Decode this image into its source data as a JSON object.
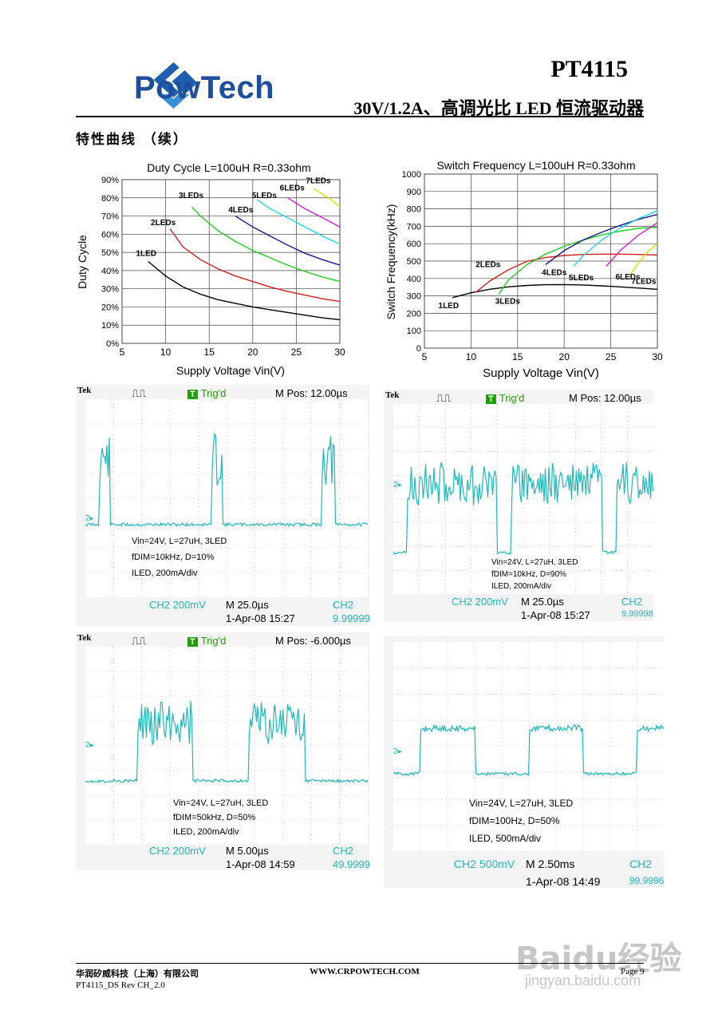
{
  "header": {
    "logo_text": "PowTech",
    "part_number": "PT4115",
    "title": "30V/1.2A、高调光比 LED 恒流驱动器"
  },
  "section_heading": "特性曲线 （续）",
  "charts": {
    "duty": {
      "title": "Duty Cycle L=100uH R=0.33ohm",
      "xlabel": "Supply Voltage Vin(V)",
      "ylabel": "Duty Cycle",
      "xticks": [
        "5",
        "10",
        "15",
        "20",
        "25",
        "30"
      ],
      "yticks": [
        "0%",
        "10%",
        "20%",
        "30%",
        "40%",
        "50%",
        "60%",
        "70%",
        "80%",
        "90%"
      ]
    },
    "freq": {
      "title": "Switch Frequency L=100uH R=0.33ohm",
      "xlabel": "Supply Voltage Vin(V)",
      "ylabel": "Switch Frequency(kHz)",
      "xticks": [
        "5",
        "10",
        "15",
        "20",
        "25",
        "30"
      ],
      "yticks": [
        "0",
        "100",
        "200",
        "300",
        "400",
        "500",
        "600",
        "700",
        "800",
        "900",
        "1000"
      ]
    }
  },
  "chart_data": [
    {
      "type": "line",
      "title": "Duty Cycle L=100uH R=0.33ohm",
      "xlabel": "Supply Voltage Vin(V)",
      "ylabel": "Duty Cycle",
      "xlim": [
        5,
        30
      ],
      "ylim": [
        0,
        90
      ],
      "grid": true,
      "series": [
        {
          "name": "1LED",
          "color": "#000000",
          "x": [
            8,
            10,
            12,
            14,
            16,
            18,
            20,
            22,
            24,
            26,
            28,
            30
          ],
          "y": [
            45,
            37,
            31,
            27,
            24,
            22,
            20,
            18.5,
            17,
            15.5,
            14,
            13
          ]
        },
        {
          "name": "2LEDs",
          "color": "#d02020",
          "x": [
            10.5,
            12,
            14,
            16,
            18,
            20,
            22,
            24,
            26,
            28,
            30
          ],
          "y": [
            63,
            53,
            46,
            41,
            37,
            34,
            31,
            28.5,
            26.5,
            24.5,
            23
          ]
        },
        {
          "name": "3LEDs",
          "color": "#22cc22",
          "x": [
            13,
            14,
            16,
            18,
            20,
            22,
            24,
            26,
            28,
            30
          ],
          "y": [
            75,
            70,
            62,
            56,
            51,
            47,
            43,
            39.5,
            36.5,
            34
          ]
        },
        {
          "name": "4LEDs",
          "color": "#1a1a8c",
          "x": [
            18,
            20,
            22,
            24,
            26,
            28,
            30
          ],
          "y": [
            70,
            64,
            59,
            54,
            49.5,
            46,
            43
          ]
        },
        {
          "name": "5LEDs",
          "color": "#22d6e0",
          "x": [
            20.5,
            22,
            24,
            26,
            28,
            30
          ],
          "y": [
            79,
            74,
            69,
            64,
            59,
            54.5
          ]
        },
        {
          "name": "6LEDs",
          "color": "#d020d0",
          "x": [
            24,
            26,
            28,
            30
          ],
          "y": [
            80,
            74,
            69,
            64
          ]
        },
        {
          "name": "7LEDs",
          "color": "#e0e000",
          "x": [
            27,
            28,
            29,
            30
          ],
          "y": [
            85,
            82,
            79,
            75
          ]
        }
      ]
    },
    {
      "type": "line",
      "title": "Switch Frequency L=100uH R=0.33ohm",
      "xlabel": "Supply Voltage Vin(V)",
      "ylabel": "Switch Frequency(kHz)",
      "xlim": [
        5,
        30
      ],
      "ylim": [
        0,
        1000
      ],
      "grid": true,
      "series": [
        {
          "name": "1LED",
          "color": "#000000",
          "x": [
            8,
            10,
            12,
            14,
            16,
            18,
            20,
            22,
            24,
            26,
            28,
            30
          ],
          "y": [
            290,
            318,
            338,
            352,
            360,
            364,
            365,
            363,
            358,
            352,
            345,
            338
          ]
        },
        {
          "name": "2LEDs",
          "color": "#d02020",
          "x": [
            10.5,
            12,
            14,
            16,
            18,
            20,
            22,
            24,
            26,
            28,
            30
          ],
          "y": [
            320,
            385,
            450,
            498,
            520,
            532,
            538,
            540,
            540,
            538,
            535
          ]
        },
        {
          "name": "3LEDs",
          "color": "#22cc22",
          "x": [
            13,
            14,
            16,
            18,
            20,
            22,
            24,
            26,
            28,
            30
          ],
          "y": [
            310,
            390,
            480,
            540,
            585,
            620,
            650,
            672,
            688,
            695
          ]
        },
        {
          "name": "4LEDs",
          "color": "#1a1a8c",
          "x": [
            18,
            20,
            22,
            24,
            26,
            28,
            30
          ],
          "y": [
            480,
            560,
            620,
            665,
            705,
            740,
            768
          ]
        },
        {
          "name": "5LEDs",
          "color": "#22d6e0",
          "x": [
            21,
            22,
            24,
            26,
            28,
            30
          ],
          "y": [
            470,
            530,
            620,
            690,
            745,
            790
          ]
        },
        {
          "name": "6LEDs",
          "color": "#d020d0",
          "x": [
            24.5,
            26,
            28,
            30
          ],
          "y": [
            470,
            560,
            650,
            720
          ]
        },
        {
          "name": "7LEDs",
          "color": "#e0e000",
          "x": [
            27,
            28,
            29,
            30
          ],
          "y": [
            415,
            490,
            555,
            600
          ]
        }
      ]
    }
  ],
  "scopes": [
    {
      "brand": "Tek",
      "trig": "Trig'd",
      "mpos": "M Pos: 12.00µs",
      "note1": "Vin=24V, L=27uH, 3LED",
      "note2": "fDIM=10kHz, D=10%",
      "note3": "ILED, 200mA/div",
      "ch": "CH2  200mV",
      "time": "M 25.0µs",
      "date": "1-Apr-08 15:27",
      "ch2": "CH2",
      "freq": "9.99999"
    },
    {
      "brand": "Tek",
      "trig": "Trig'd",
      "mpos": "M Pos: 12.00µs",
      "note1": "Vin=24V, L=27uH, 3LED",
      "note2": "fDIM=10kHz, D=90%",
      "note3": "ILED, 200mA/div",
      "ch": "CH2  200mV",
      "time": "M 25.0µs",
      "date": "1-Apr-08 15:27",
      "ch2": "CH2",
      "freq": "9.99998"
    },
    {
      "brand": "Tek",
      "trig": "Trig'd",
      "mpos": "M Pos: -6.000µs",
      "note1": "Vin=24V, L=27uH, 3LED",
      "note2": "fDIM=50kHz, D=50%",
      "note3": "ILED, 200mA/div",
      "ch": "CH2  200mV",
      "time": "M 5.00µs",
      "date": "1-Apr-08 14:59",
      "ch2": "CH2",
      "freq": "49.9999"
    },
    {
      "brand": "",
      "trig": "",
      "mpos": "",
      "note1": "Vin=24V, L=27uH, 3LED",
      "note2": "fDIM=100Hz, D=50%",
      "note3": "ILED, 500mA/div",
      "ch": "CH2  500mV",
      "time": "M 2.50ms",
      "date": "1-Apr-08 14:49",
      "ch2": "CH2",
      "freq": "99.9996"
    }
  ],
  "footer": {
    "company": "华润矽威科技（上海）有限公司",
    "url": "WWW.CRPOWTECH.COM",
    "page": "Page 9",
    "rev": "PT4115_DS Rev CH_2.0"
  },
  "watermark": {
    "main": "Baidu经验",
    "sub": "jingyan.baidu.com"
  }
}
